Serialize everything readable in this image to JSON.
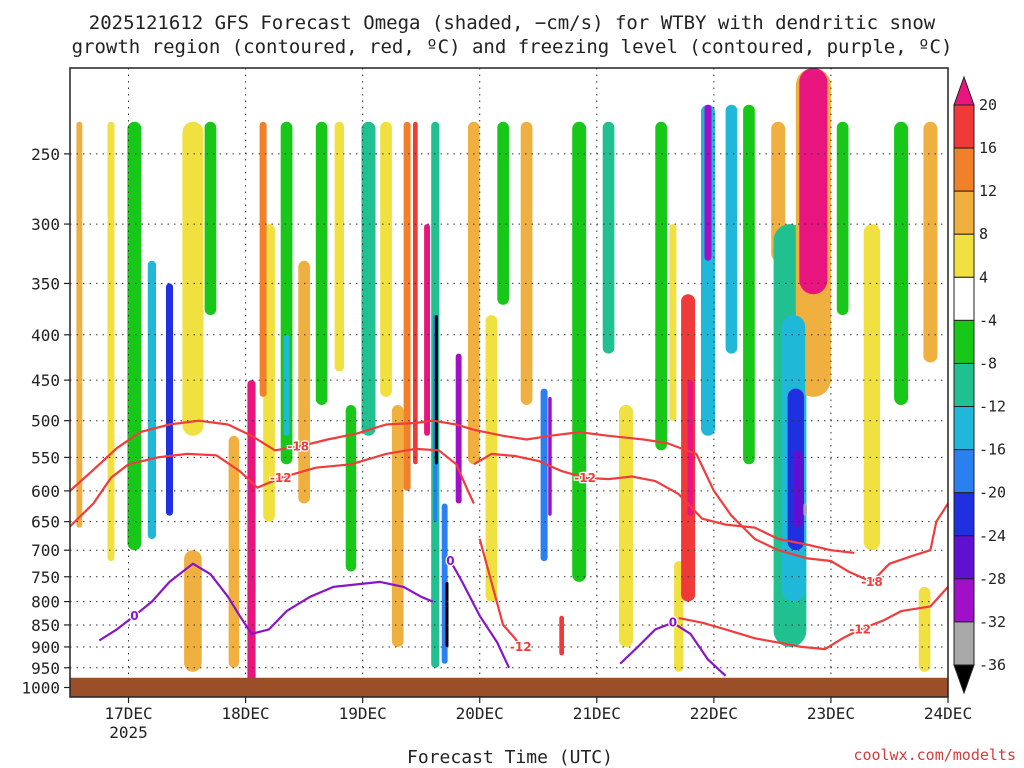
{
  "title": {
    "line1": "2025121612 GFS Forecast Omega (shaded, −cm/s) for WTBY with dendritic snow",
    "line2": "growth region (contoured, red, ºC) and freezing level (contoured, purple, ºC)"
  },
  "credit": "coolwx.com/modelts",
  "chart_data": {
    "type": "heatmap",
    "xlabel": "Forecast Time (UTC)",
    "ylabel": "",
    "x_range": [
      16.5,
      24.0
    ],
    "x_ticks": [
      {
        "v": 17,
        "label": "17DEC",
        "sub": "2025"
      },
      {
        "v": 18,
        "label": "18DEC"
      },
      {
        "v": 19,
        "label": "19DEC"
      },
      {
        "v": 20,
        "label": "20DEC"
      },
      {
        "v": 21,
        "label": "21DEC"
      },
      {
        "v": 22,
        "label": "22DEC"
      },
      {
        "v": 23,
        "label": "23DEC"
      },
      {
        "v": 24,
        "label": "24DEC"
      }
    ],
    "y_range": [
      1025,
      200
    ],
    "y_ticks": [
      250,
      300,
      350,
      400,
      450,
      500,
      550,
      600,
      650,
      700,
      750,
      800,
      850,
      900,
      950,
      1000
    ],
    "grid": true,
    "colorbar": {
      "levels": [
        20,
        16,
        12,
        8,
        4,
        -4,
        -8,
        -12,
        -16,
        -20,
        -24,
        -28,
        -32,
        -36
      ],
      "bands": [
        {
          "from": 20,
          "to": 24,
          "color": "#e8157f"
        },
        {
          "from": 16,
          "to": 20,
          "color": "#f03a3a"
        },
        {
          "from": 12,
          "to": 16,
          "color": "#f0802a"
        },
        {
          "from": 8,
          "to": 12,
          "color": "#f0b040"
        },
        {
          "from": 4,
          "to": 8,
          "color": "#f0e040"
        },
        {
          "from": -4,
          "to": 4,
          "color": "#ffffff"
        },
        {
          "from": -8,
          "to": -4,
          "color": "#18c818"
        },
        {
          "from": -12,
          "to": -8,
          "color": "#20c090"
        },
        {
          "from": -16,
          "to": -12,
          "color": "#20b8d8"
        },
        {
          "from": -20,
          "to": -16,
          "color": "#2a80f0"
        },
        {
          "from": -24,
          "to": -20,
          "color": "#2030e0"
        },
        {
          "from": -28,
          "to": -24,
          "color": "#6010d0"
        },
        {
          "from": -32,
          "to": -28,
          "color": "#a010c8"
        },
        {
          "from": -36,
          "to": -32,
          "color": "#a8a8a8"
        },
        {
          "from": -40,
          "to": -36,
          "color": "#000000"
        }
      ]
    },
    "omega_features": [
      {
        "x": 16.58,
        "p0": 230,
        "p1": 660,
        "w": 0.05,
        "v": 9
      },
      {
        "x": 16.85,
        "p0": 230,
        "p1": 720,
        "w": 0.06,
        "v": 6
      },
      {
        "x": 17.05,
        "p0": 230,
        "p1": 700,
        "w": 0.12,
        "v": -6
      },
      {
        "x": 17.2,
        "p0": 330,
        "p1": 680,
        "w": 0.07,
        "v": -14
      },
      {
        "x": 17.35,
        "p0": 350,
        "p1": 640,
        "w": 0.06,
        "v": -21
      },
      {
        "x": 17.55,
        "p0": 700,
        "p1": 960,
        "w": 0.15,
        "v": 9
      },
      {
        "x": 17.55,
        "p0": 230,
        "p1": 520,
        "w": 0.18,
        "v": 6
      },
      {
        "x": 17.7,
        "p0": 230,
        "p1": 380,
        "w": 0.1,
        "v": -6
      },
      {
        "x": 17.9,
        "p0": 520,
        "p1": 950,
        "w": 0.09,
        "v": 10
      },
      {
        "x": 18.05,
        "p0": 450,
        "p1": 1000,
        "w": 0.07,
        "v": 22
      },
      {
        "x": 18.15,
        "p0": 230,
        "p1": 470,
        "w": 0.06,
        "v": 13
      },
      {
        "x": 18.2,
        "p0": 300,
        "p1": 650,
        "w": 0.1,
        "v": 6
      },
      {
        "x": 18.35,
        "p0": 230,
        "p1": 560,
        "w": 0.1,
        "v": -6
      },
      {
        "x": 18.35,
        "p0": 400,
        "p1": 520,
        "w": 0.05,
        "v": -14
      },
      {
        "x": 18.5,
        "p0": 330,
        "p1": 620,
        "w": 0.1,
        "v": 8
      },
      {
        "x": 18.65,
        "p0": 230,
        "p1": 480,
        "w": 0.1,
        "v": -7
      },
      {
        "x": 18.8,
        "p0": 230,
        "p1": 440,
        "w": 0.08,
        "v": 5
      },
      {
        "x": 18.9,
        "p0": 480,
        "p1": 740,
        "w": 0.09,
        "v": -7
      },
      {
        "x": 19.05,
        "p0": 230,
        "p1": 520,
        "w": 0.12,
        "v": -9
      },
      {
        "x": 19.2,
        "p0": 230,
        "p1": 470,
        "w": 0.1,
        "v": 6
      },
      {
        "x": 19.3,
        "p0": 480,
        "p1": 900,
        "w": 0.1,
        "v": 8
      },
      {
        "x": 19.38,
        "p0": 230,
        "p1": 600,
        "w": 0.06,
        "v": 12
      },
      {
        "x": 19.45,
        "p0": 230,
        "p1": 560,
        "w": 0.04,
        "v": 18
      },
      {
        "x": 19.55,
        "p0": 300,
        "p1": 520,
        "w": 0.05,
        "v": 22
      },
      {
        "x": 19.62,
        "p0": 230,
        "p1": 950,
        "w": 0.07,
        "v": -10
      },
      {
        "x": 19.62,
        "p0": 380,
        "p1": 650,
        "w": 0.035,
        "v": -20
      },
      {
        "x": 19.63,
        "p0": 380,
        "p1": 560,
        "w": 0.02,
        "v": -40
      },
      {
        "x": 19.7,
        "p0": 620,
        "p1": 940,
        "w": 0.05,
        "v": -20
      },
      {
        "x": 19.72,
        "p0": 760,
        "p1": 900,
        "w": 0.025,
        "v": -40
      },
      {
        "x": 19.82,
        "p0": 420,
        "p1": 620,
        "w": 0.05,
        "v": -29
      },
      {
        "x": 19.95,
        "p0": 230,
        "p1": 560,
        "w": 0.1,
        "v": 8
      },
      {
        "x": 20.1,
        "p0": 380,
        "p1": 800,
        "w": 0.1,
        "v": 6
      },
      {
        "x": 20.2,
        "p0": 230,
        "p1": 370,
        "w": 0.1,
        "v": -7
      },
      {
        "x": 20.4,
        "p0": 230,
        "p1": 480,
        "w": 0.1,
        "v": 10
      },
      {
        "x": 20.55,
        "p0": 460,
        "p1": 720,
        "w": 0.06,
        "v": -18
      },
      {
        "x": 20.6,
        "p0": 470,
        "p1": 640,
        "w": 0.03,
        "v": -29
      },
      {
        "x": 20.7,
        "p0": 830,
        "p1": 920,
        "w": 0.04,
        "v": 18
      },
      {
        "x": 20.85,
        "p0": 230,
        "p1": 760,
        "w": 0.12,
        "v": -7
      },
      {
        "x": 21.1,
        "p0": 230,
        "p1": 420,
        "w": 0.1,
        "v": -9
      },
      {
        "x": 21.25,
        "p0": 480,
        "p1": 900,
        "w": 0.12,
        "v": 6
      },
      {
        "x": 21.55,
        "p0": 230,
        "p1": 540,
        "w": 0.1,
        "v": -7
      },
      {
        "x": 21.65,
        "p0": 300,
        "p1": 500,
        "w": 0.06,
        "v": 5
      },
      {
        "x": 21.78,
        "p0": 360,
        "p1": 800,
        "w": 0.12,
        "v": 16
      },
      {
        "x": 21.8,
        "p0": 450,
        "p1": 640,
        "w": 0.05,
        "v": 20
      },
      {
        "x": 21.7,
        "p0": 720,
        "p1": 960,
        "w": 0.08,
        "v": 6
      },
      {
        "x": 21.95,
        "p0": 220,
        "p1": 520,
        "w": 0.12,
        "v": -16
      },
      {
        "x": 21.95,
        "p0": 220,
        "p1": 330,
        "w": 0.06,
        "v": -30
      },
      {
        "x": 22.15,
        "p0": 220,
        "p1": 420,
        "w": 0.1,
        "v": -13
      },
      {
        "x": 22.3,
        "p0": 220,
        "p1": 560,
        "w": 0.1,
        "v": -6
      },
      {
        "x": 22.55,
        "p0": 230,
        "p1": 330,
        "w": 0.12,
        "v": 9
      },
      {
        "x": 22.65,
        "p0": 300,
        "p1": 900,
        "w": 0.28,
        "v": -9
      },
      {
        "x": 22.68,
        "p0": 380,
        "p1": 800,
        "w": 0.2,
        "v": -16
      },
      {
        "x": 22.7,
        "p0": 460,
        "p1": 700,
        "w": 0.14,
        "v": -22
      },
      {
        "x": 22.72,
        "p0": 540,
        "p1": 660,
        "w": 0.08,
        "v": -28
      },
      {
        "x": 22.78,
        "p0": 620,
        "p1": 640,
        "w": 0.03,
        "v": -34
      },
      {
        "x": 22.85,
        "p0": 200,
        "p1": 360,
        "w": 0.24,
        "v": 24
      },
      {
        "x": 22.85,
        "p0": 200,
        "p1": 470,
        "w": 0.3,
        "v": 10
      },
      {
        "x": 23.1,
        "p0": 230,
        "p1": 380,
        "w": 0.1,
        "v": -7
      },
      {
        "x": 23.35,
        "p0": 300,
        "p1": 700,
        "w": 0.14,
        "v": 6
      },
      {
        "x": 23.6,
        "p0": 230,
        "p1": 480,
        "w": 0.12,
        "v": -7
      },
      {
        "x": 23.85,
        "p0": 230,
        "p1": 430,
        "w": 0.12,
        "v": 8
      },
      {
        "x": 23.8,
        "p0": 770,
        "p1": 960,
        "w": 0.1,
        "v": 6
      }
    ],
    "contours_red": [
      {
        "level": "-18",
        "label_at": 18.38,
        "points": [
          [
            16.5,
            600
          ],
          [
            16.7,
            568
          ],
          [
            16.9,
            537
          ],
          [
            17.1,
            515
          ],
          [
            17.35,
            505
          ],
          [
            17.6,
            500
          ],
          [
            17.85,
            505
          ],
          [
            18.05,
            520
          ],
          [
            18.25,
            540
          ],
          [
            18.45,
            535
          ],
          [
            18.7,
            525
          ],
          [
            18.95,
            517
          ],
          [
            19.2,
            505
          ],
          [
            19.45,
            503
          ],
          [
            19.6,
            500
          ],
          [
            19.8,
            505
          ],
          [
            19.95,
            512
          ]
        ]
      },
      {
        "level": "-12",
        "label_at": 18.22,
        "points": [
          [
            16.5,
            658
          ],
          [
            16.7,
            620
          ],
          [
            16.85,
            580
          ],
          [
            17.0,
            560
          ],
          [
            17.25,
            550
          ],
          [
            17.5,
            545
          ],
          [
            17.75,
            547
          ],
          [
            17.95,
            570
          ],
          [
            18.1,
            595
          ],
          [
            18.3,
            580
          ],
          [
            18.6,
            565
          ],
          [
            18.9,
            560
          ],
          [
            19.2,
            545
          ],
          [
            19.45,
            538
          ],
          [
            19.65,
            540
          ],
          [
            19.8,
            560
          ],
          [
            19.9,
            600
          ],
          [
            19.95,
            620
          ]
        ]
      },
      {
        "level": "-12",
        "label_at": 20.8,
        "points": [
          [
            19.95,
            560
          ],
          [
            20.1,
            545
          ],
          [
            20.3,
            548
          ],
          [
            20.5,
            555
          ],
          [
            20.7,
            570
          ],
          [
            20.9,
            580
          ],
          [
            21.1,
            582
          ],
          [
            21.3,
            578
          ],
          [
            21.5,
            585
          ],
          [
            21.7,
            605
          ],
          [
            21.9,
            645
          ],
          [
            22.1,
            655
          ],
          [
            22.35,
            660
          ],
          [
            22.55,
            680
          ],
          [
            22.8,
            690
          ],
          [
            23.0,
            700
          ],
          [
            23.2,
            705
          ]
        ]
      },
      {
        "level": "-18",
        "label_at": 23.3,
        "points": [
          [
            19.95,
            512
          ],
          [
            20.2,
            520
          ],
          [
            20.4,
            525
          ],
          [
            20.6,
            520
          ],
          [
            20.85,
            515
          ],
          [
            21.1,
            520
          ],
          [
            21.4,
            525
          ],
          [
            21.6,
            530
          ],
          [
            21.85,
            545
          ],
          [
            22.0,
            600
          ],
          [
            22.15,
            640
          ],
          [
            22.35,
            680
          ],
          [
            22.55,
            700
          ],
          [
            22.8,
            715
          ],
          [
            23.0,
            720
          ],
          [
            23.15,
            740
          ],
          [
            23.35,
            760
          ],
          [
            23.5,
            725
          ],
          [
            23.7,
            710
          ],
          [
            23.85,
            700
          ],
          [
            23.9,
            650
          ],
          [
            24.0,
            620
          ]
        ]
      },
      {
        "level": "-12",
        "label_at": 22.3,
        "points": [
          [
            20.0,
            680
          ],
          [
            20.1,
            760
          ],
          [
            20.2,
            850
          ],
          [
            20.3,
            880
          ],
          [
            20.35,
            900
          ]
        ]
      },
      {
        "level": "-12",
        "label_at": 23.3,
        "points": [
          [
            21.7,
            835
          ],
          [
            21.9,
            845
          ],
          [
            22.1,
            860
          ],
          [
            22.35,
            880
          ],
          [
            22.55,
            890
          ],
          [
            22.75,
            900
          ],
          [
            22.95,
            905
          ],
          [
            23.1,
            880
          ],
          [
            23.25,
            860
          ],
          [
            23.45,
            840
          ],
          [
            23.6,
            820
          ],
          [
            23.85,
            810
          ],
          [
            24.0,
            770
          ]
        ]
      }
    ],
    "contours_purple": [
      {
        "level": "0",
        "label_at": 17.0,
        "points": [
          [
            16.75,
            885
          ],
          [
            16.9,
            860
          ],
          [
            17.05,
            830
          ],
          [
            17.2,
            800
          ],
          [
            17.35,
            760
          ],
          [
            17.55,
            725
          ],
          [
            17.7,
            745
          ],
          [
            17.85,
            790
          ],
          [
            17.95,
            830
          ],
          [
            18.05,
            870
          ],
          [
            18.2,
            860
          ],
          [
            18.35,
            820
          ],
          [
            18.55,
            790
          ],
          [
            18.75,
            770
          ],
          [
            18.95,
            765
          ],
          [
            19.15,
            760
          ],
          [
            19.35,
            770
          ],
          [
            19.5,
            790
          ],
          [
            19.6,
            800
          ]
        ]
      },
      {
        "level": "0",
        "label_at": 19.45,
        "points": [
          [
            19.75,
            720
          ],
          [
            19.85,
            760
          ],
          [
            20.0,
            830
          ],
          [
            20.15,
            890
          ],
          [
            20.25,
            950
          ]
        ]
      },
      {
        "level": "0",
        "label_at": 21.6,
        "points": [
          [
            21.2,
            940
          ],
          [
            21.35,
            900
          ],
          [
            21.5,
            860
          ],
          [
            21.65,
            845
          ],
          [
            21.8,
            870
          ],
          [
            21.95,
            930
          ],
          [
            22.1,
            970
          ]
        ]
      }
    ],
    "terrain_color": "#9b4f28",
    "surface_p": 975
  }
}
